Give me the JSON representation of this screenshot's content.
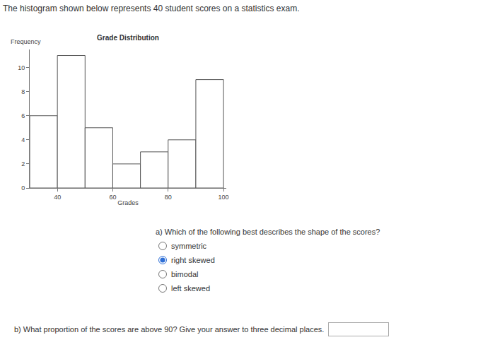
{
  "header": "The histogram shown below represents 40 student scores on a statistics exam.",
  "chart_data": {
    "type": "histogram",
    "title": "Grade Distribution",
    "xlabel": "Grades",
    "ylabel": "Frequency",
    "bins": [
      30,
      40,
      50,
      60,
      70,
      80,
      90,
      100
    ],
    "values": [
      6,
      11,
      5,
      2,
      3,
      4,
      9
    ],
    "color": "#ffffff",
    "xlim": [
      30,
      101
    ],
    "ylim": [
      0,
      11.5
    ],
    "xticks": [
      40,
      60,
      80,
      100
    ],
    "yticks": [
      0,
      2,
      4,
      6,
      8,
      10
    ],
    "grid": false
  },
  "question_a": {
    "text": "a) Which of the following best describes the shape of the scores?",
    "options": [
      "symmetric",
      "right skewed",
      "bimodal",
      "left skewed"
    ],
    "selected": "right skewed"
  },
  "question_b": {
    "text": "b) What proportion of the scores are above 90? Give your answer to three decimal places."
  }
}
